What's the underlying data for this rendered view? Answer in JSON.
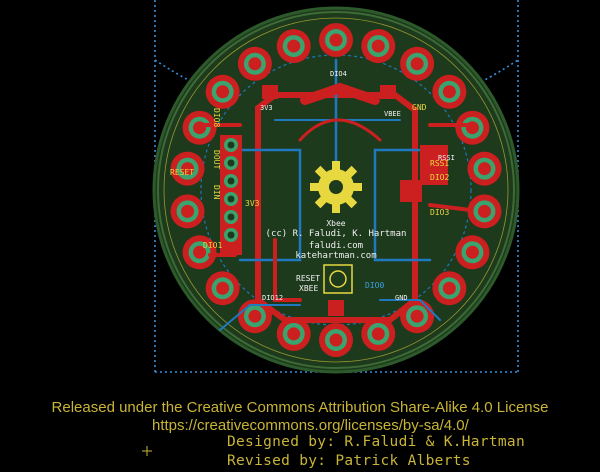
{
  "board": {
    "center_text": [
      "(cc) R. Faludi, K. Hartman",
      "faludi.com",
      "katehartman.com"
    ],
    "logo_text": "Xbee",
    "reset_label": [
      "RESET",
      "XBEE"
    ],
    "pin_labels": [
      "DIO8",
      "DOUT",
      "DIN",
      "RESET",
      "RSSI",
      "3V3",
      "GND",
      "DIO2",
      "DIO3",
      "DIO1",
      "DIO0"
    ],
    "small_labels": [
      "DIO4",
      "VBEE",
      "3V3",
      "GND",
      "RSSI",
      "DIO12"
    ]
  },
  "license": {
    "line1": "Released under the Creative Commons Attribution Share-Alike 4.0 License",
    "line2": "https://creativecommons.org/licenses/by-sa/4.0/",
    "line3": "Designed by: R.Faludi & K.Hartman",
    "line4": "Revised by: Patrick Alberts"
  },
  "colors": {
    "background": "#000000",
    "copper_top": "#cc1f1f",
    "copper_bottom": "#1f78c0",
    "board_green": "#2d5a2b",
    "pad_green": "#3aa36e",
    "silkscreen": "#e8d840",
    "outline_dots": "#3a8fd8",
    "license_text": "#c8b536"
  }
}
